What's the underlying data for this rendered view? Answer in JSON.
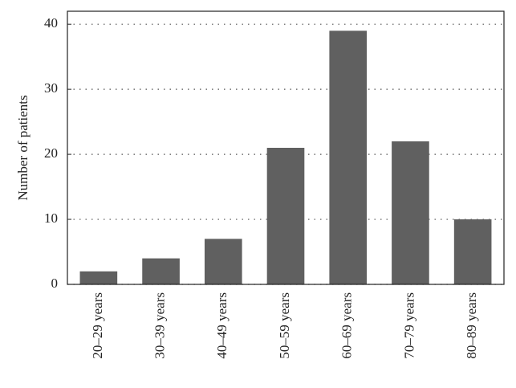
{
  "chart_data": {
    "type": "bar",
    "y_label": "Number of patients",
    "categories": [
      "20–29 years",
      "30–39 years",
      "40–49 years",
      "50–59 years",
      "60–69 years",
      "70–79 years",
      "80–89 years"
    ],
    "values": [
      2,
      4,
      7,
      21,
      39,
      22,
      10
    ],
    "color": "#606060",
    "ylim": [
      0,
      42
    ],
    "yticks": [
      0,
      10,
      20,
      30,
      40
    ],
    "grid": true
  }
}
